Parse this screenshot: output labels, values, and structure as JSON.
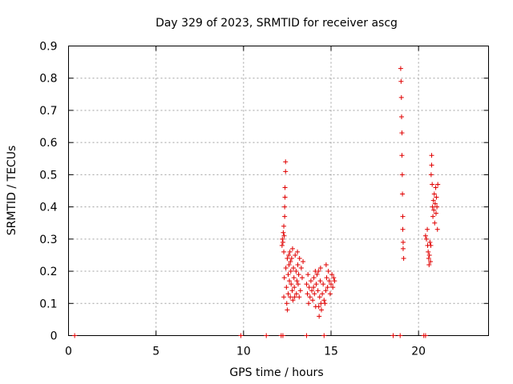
{
  "chart_data": {
    "type": "scatter",
    "title": "Day 329 of 2023, SRMTID for receiver ascg",
    "xlabel": "GPS time / hours",
    "ylabel": "SRMTID / TECUs",
    "xlim": [
      0,
      24
    ],
    "ylim": [
      0,
      0.9
    ],
    "xticks": [
      0,
      5,
      10,
      15,
      20
    ],
    "yticks": [
      0,
      0.1,
      0.2,
      0.3,
      0.4,
      0.5,
      0.6,
      0.7,
      0.8,
      0.9
    ],
    "xtick_labels": [
      "0",
      "5",
      "10",
      "15",
      "20"
    ],
    "ytick_labels": [
      "0",
      "0.1",
      "0.2",
      "0.3",
      "0.4",
      "0.5",
      "0.6",
      "0.7",
      "0.8",
      "0.9"
    ],
    "grid": true,
    "marker_color": "#e00000",
    "marker": "+",
    "series": [
      {
        "name": "SRMTID",
        "points": [
          [
            0.35,
            0.0
          ],
          [
            9.85,
            0.0
          ],
          [
            11.3,
            0.0
          ],
          [
            12.15,
            0.0
          ],
          [
            12.25,
            0.0
          ],
          [
            13.6,
            0.0
          ],
          [
            14.6,
            0.0
          ],
          [
            18.55,
            0.0
          ],
          [
            18.95,
            0.0
          ],
          [
            20.3,
            0.0
          ],
          [
            20.4,
            0.0
          ],
          [
            12.2,
            0.28
          ],
          [
            12.22,
            0.3
          ],
          [
            12.25,
            0.29
          ],
          [
            12.27,
            0.32
          ],
          [
            12.3,
            0.34
          ],
          [
            12.3,
            0.26
          ],
          [
            12.32,
            0.31
          ],
          [
            12.35,
            0.37
          ],
          [
            12.35,
            0.4
          ],
          [
            12.37,
            0.43
          ],
          [
            12.37,
            0.46
          ],
          [
            12.4,
            0.51
          ],
          [
            12.4,
            0.54
          ],
          [
            12.3,
            0.12
          ],
          [
            12.33,
            0.18
          ],
          [
            12.42,
            0.21
          ],
          [
            12.45,
            0.15
          ],
          [
            12.47,
            0.1
          ],
          [
            12.5,
            0.08
          ],
          [
            12.5,
            0.24
          ],
          [
            12.55,
            0.19
          ],
          [
            12.55,
            0.13
          ],
          [
            12.6,
            0.22
          ],
          [
            12.62,
            0.17
          ],
          [
            12.65,
            0.26
          ],
          [
            12.67,
            0.12
          ],
          [
            12.7,
            0.2
          ],
          [
            12.72,
            0.16
          ],
          [
            12.75,
            0.24
          ],
          [
            12.78,
            0.14
          ],
          [
            12.8,
            0.27
          ],
          [
            12.82,
            0.11
          ],
          [
            12.85,
            0.21
          ],
          [
            12.88,
            0.18
          ],
          [
            12.9,
            0.15
          ],
          [
            12.95,
            0.25
          ],
          [
            13.0,
            0.2
          ],
          [
            13.02,
            0.13
          ],
          [
            13.05,
            0.17
          ],
          [
            13.08,
            0.26
          ],
          [
            13.1,
            0.22
          ],
          [
            13.12,
            0.16
          ],
          [
            13.15,
            0.19
          ],
          [
            13.2,
            0.24
          ],
          [
            13.25,
            0.14
          ],
          [
            13.3,
            0.21
          ],
          [
            13.35,
            0.18
          ],
          [
            13.4,
            0.23
          ],
          [
            12.58,
            0.25
          ],
          [
            12.68,
            0.23
          ],
          [
            12.92,
            0.12
          ],
          [
            13.18,
            0.12
          ],
          [
            13.6,
            0.16
          ],
          [
            13.65,
            0.13
          ],
          [
            13.68,
            0.19
          ],
          [
            13.72,
            0.1
          ],
          [
            13.75,
            0.15
          ],
          [
            13.8,
            0.12
          ],
          [
            13.85,
            0.17
          ],
          [
            13.9,
            0.14
          ],
          [
            13.95,
            0.11
          ],
          [
            14.0,
            0.15
          ],
          [
            14.02,
            0.18
          ],
          [
            14.05,
            0.13
          ],
          [
            14.1,
            0.2
          ],
          [
            14.15,
            0.16
          ],
          [
            14.2,
            0.19
          ],
          [
            14.25,
            0.14
          ],
          [
            14.3,
            0.09
          ],
          [
            14.32,
            0.06
          ],
          [
            14.35,
            0.12
          ],
          [
            14.38,
            0.17
          ],
          [
            14.4,
            0.21
          ],
          [
            14.45,
            0.08
          ],
          [
            14.5,
            0.13
          ],
          [
            14.55,
            0.16
          ],
          [
            14.6,
            0.11
          ],
          [
            14.65,
            0.1
          ],
          [
            14.7,
            0.14
          ],
          [
            14.72,
            0.22
          ],
          [
            14.75,
            0.18
          ],
          [
            14.8,
            0.15
          ],
          [
            14.85,
            0.2
          ],
          [
            14.9,
            0.17
          ],
          [
            14.95,
            0.13
          ],
          [
            15.0,
            0.16
          ],
          [
            15.05,
            0.19
          ],
          [
            15.1,
            0.15
          ],
          [
            15.15,
            0.18
          ],
          [
            15.2,
            0.17
          ],
          [
            14.12,
            0.09
          ],
          [
            14.28,
            0.2
          ],
          [
            14.42,
            0.1
          ],
          [
            18.98,
            0.83
          ],
          [
            19.0,
            0.79
          ],
          [
            19.02,
            0.74
          ],
          [
            19.03,
            0.68
          ],
          [
            19.05,
            0.63
          ],
          [
            19.05,
            0.56
          ],
          [
            19.07,
            0.5
          ],
          [
            19.08,
            0.44
          ],
          [
            19.1,
            0.37
          ],
          [
            19.1,
            0.33
          ],
          [
            19.12,
            0.29
          ],
          [
            19.12,
            0.27
          ],
          [
            19.15,
            0.24
          ],
          [
            20.4,
            0.31
          ],
          [
            20.45,
            0.3
          ],
          [
            20.5,
            0.33
          ],
          [
            20.52,
            0.28
          ],
          [
            20.55,
            0.26
          ],
          [
            20.58,
            0.24
          ],
          [
            20.6,
            0.22
          ],
          [
            20.62,
            0.25
          ],
          [
            20.65,
            0.29
          ],
          [
            20.68,
            0.23
          ],
          [
            20.7,
            0.28
          ],
          [
            20.72,
            0.5
          ],
          [
            20.75,
            0.56
          ],
          [
            20.75,
            0.53
          ],
          [
            20.78,
            0.47
          ],
          [
            20.8,
            0.4
          ],
          [
            20.82,
            0.37
          ],
          [
            20.85,
            0.42
          ],
          [
            20.87,
            0.39
          ],
          [
            20.9,
            0.44
          ],
          [
            20.92,
            0.35
          ],
          [
            20.95,
            0.41
          ],
          [
            20.98,
            0.46
          ],
          [
            21.0,
            0.38
          ],
          [
            21.02,
            0.43
          ],
          [
            21.05,
            0.4
          ],
          [
            21.08,
            0.33
          ],
          [
            21.1,
            0.47
          ]
        ]
      }
    ]
  }
}
